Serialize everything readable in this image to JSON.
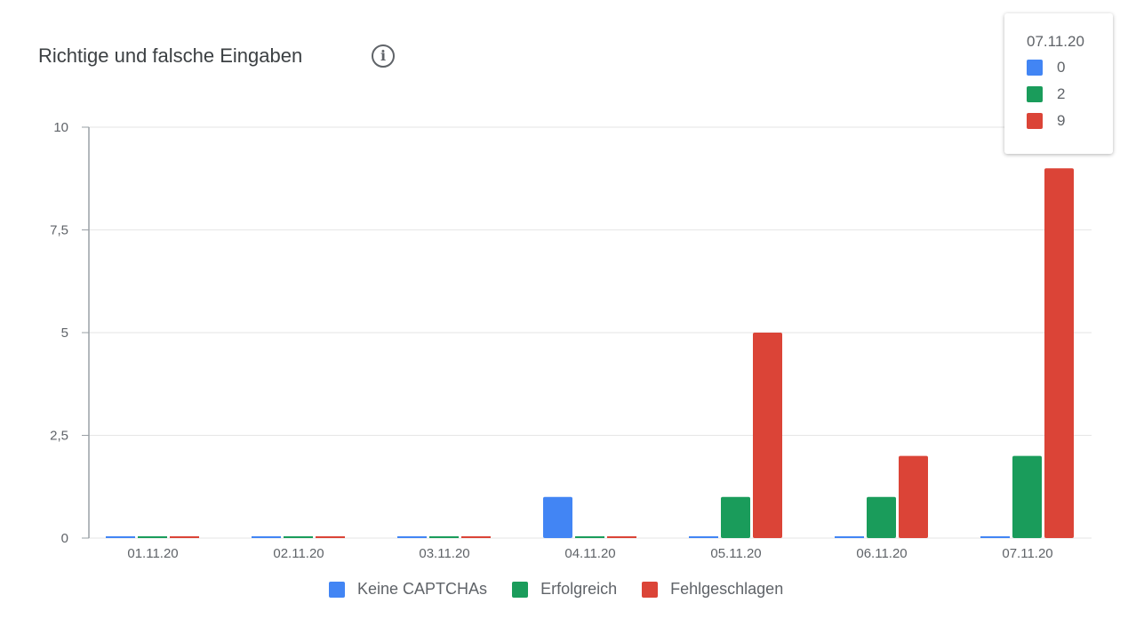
{
  "title": "Richtige und falsche Eingaben",
  "info_icon": "info-icon",
  "tooltip": {
    "date": "07.11.20",
    "values": [
      "0",
      "2",
      "9"
    ]
  },
  "chart_data": {
    "type": "bar",
    "title": "Richtige und falsche Eingaben",
    "categories": [
      "01.11.20",
      "02.11.20",
      "03.11.20",
      "04.11.20",
      "05.11.20",
      "06.11.20",
      "07.11.20"
    ],
    "series": [
      {
        "name": "Keine CAPTCHAs",
        "color": "#4285f4",
        "values": [
          0,
          0,
          0,
          1,
          0,
          0,
          0
        ]
      },
      {
        "name": "Erfolgreich",
        "color": "#1a9c5b",
        "values": [
          0,
          0,
          0,
          0,
          1,
          1,
          2
        ]
      },
      {
        "name": "Fehlgeschlagen",
        "color": "#db4437",
        "values": [
          0,
          0,
          0,
          0,
          5,
          2,
          9
        ]
      }
    ],
    "yticks": [
      "0",
      "2,5",
      "5",
      "7,5",
      "10"
    ],
    "ytick_values": [
      0,
      2.5,
      5,
      7.5,
      10
    ],
    "ylim": [
      0,
      10
    ],
    "grid": true,
    "legend": "bottom"
  }
}
